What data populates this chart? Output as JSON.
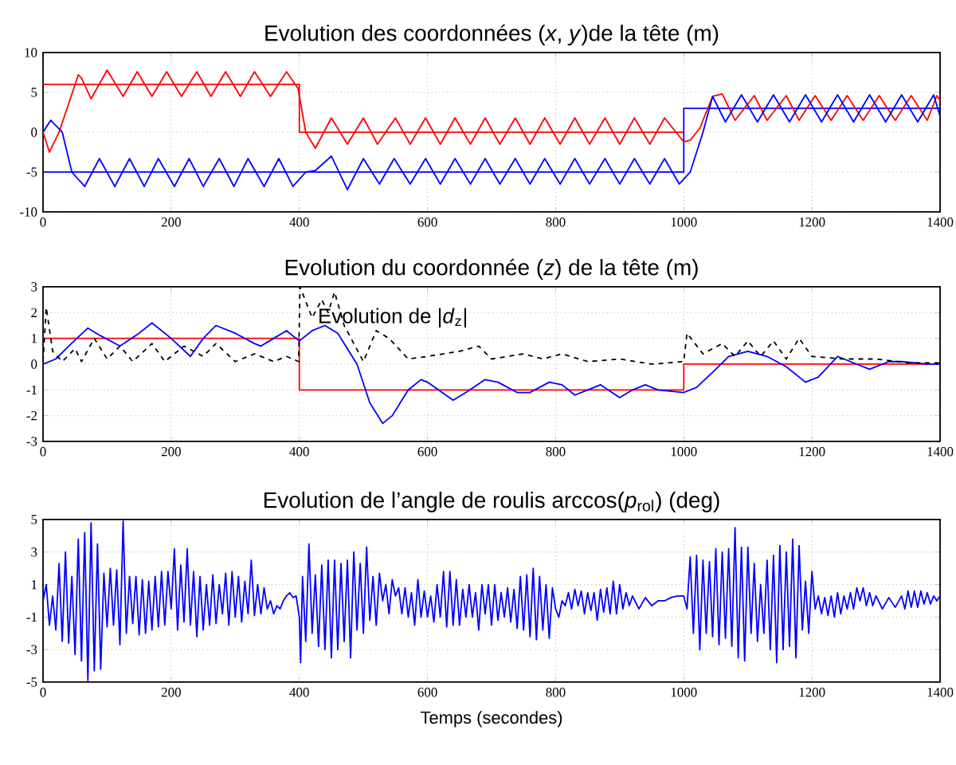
{
  "chart_data": [
    {
      "type": "line",
      "title": "Evolution des coordonnées (*x*, *y*)de la tête (m)",
      "xlim": [
        0,
        1400
      ],
      "ylim": [
        -10,
        10
      ],
      "xticks": [
        0,
        200,
        400,
        600,
        800,
        1000,
        1200,
        1400
      ],
      "yticks": [
        -10,
        -5,
        0,
        5,
        10
      ],
      "grid": true,
      "series": [
        {
          "color": "#ff0000",
          "x": [
            0,
            400,
            400,
            1000
          ],
          "values": [
            6,
            6,
            0,
            0
          ]
        },
        {
          "color": "#0000ff",
          "x": [
            0,
            1000,
            1000,
            1400
          ],
          "values": [
            -5,
            -5,
            3,
            3
          ]
        },
        {
          "color": "#ff0000",
          "x": [
            0,
            10,
            25,
            55,
            60,
            75,
            100,
            125,
            147,
            170,
            193,
            216,
            240,
            262,
            285,
            308,
            330,
            355,
            380,
            398,
            410,
            425,
            450,
            475,
            500,
            522,
            550,
            573,
            597,
            620,
            643,
            667,
            690,
            713,
            737,
            760,
            783,
            807,
            830,
            853,
            877,
            900,
            923,
            947,
            970,
            1000,
            1010,
            1025,
            1045,
            1060,
            1080,
            1110,
            1130,
            1160,
            1180,
            1205,
            1230,
            1255,
            1280,
            1305,
            1330,
            1355,
            1380,
            1395,
            1400
          ],
          "values": [
            0,
            -2.5,
            0,
            7.2,
            6.8,
            4.2,
            7.8,
            4.5,
            7.6,
            4.5,
            7.6,
            4.5,
            7.6,
            4.5,
            7.6,
            4.5,
            7.6,
            4.5,
            7.6,
            5.5,
            0,
            -2,
            1.8,
            -1.5,
            1.8,
            -1.5,
            1.8,
            -1.5,
            1.8,
            -1.5,
            1.8,
            -1.5,
            1.8,
            -1.5,
            1.8,
            -1.5,
            1.8,
            -1.5,
            1.8,
            -1.5,
            1.8,
            -1.5,
            1.8,
            -1.5,
            1.8,
            -1.2,
            -1,
            0.5,
            4.5,
            4.8,
            1.5,
            4.6,
            1.5,
            4.6,
            1.5,
            4.6,
            1.5,
            4.6,
            1.5,
            4.6,
            1.5,
            4.6,
            1.5,
            4.6,
            4
          ]
        },
        {
          "color": "#0000ff",
          "x": [
            0,
            12,
            30,
            45,
            65,
            88,
            112,
            135,
            158,
            180,
            205,
            228,
            250,
            275,
            298,
            320,
            345,
            368,
            390,
            410,
            425,
            450,
            475,
            500,
            525,
            548,
            573,
            597,
            620,
            643,
            667,
            690,
            713,
            737,
            760,
            783,
            807,
            830,
            853,
            877,
            900,
            923,
            947,
            970,
            993,
            1010,
            1030,
            1045,
            1065,
            1090,
            1115,
            1140,
            1165,
            1190,
            1215,
            1240,
            1265,
            1290,
            1315,
            1340,
            1365,
            1390,
            1400
          ],
          "values": [
            0,
            1.5,
            0,
            -5,
            -6.8,
            -3.3,
            -6.8,
            -3.3,
            -6.8,
            -3.3,
            -6.8,
            -3.3,
            -6.8,
            -3.3,
            -6.8,
            -3.3,
            -6.8,
            -3.3,
            -6.8,
            -5,
            -4.8,
            -3,
            -7.2,
            -3.3,
            -6.5,
            -3.3,
            -6.5,
            -3.3,
            -6.5,
            -3.3,
            -6.5,
            -3.3,
            -6.5,
            -3.3,
            -6.5,
            -3.3,
            -6.5,
            -3.3,
            -6.5,
            -3.3,
            -6.5,
            -3.3,
            -6.5,
            -3.3,
            -6.5,
            -5,
            0,
            4.5,
            1.3,
            4.7,
            1.3,
            4.7,
            1.3,
            4.7,
            1.3,
            4.7,
            1.3,
            4.7,
            1.3,
            4.7,
            1.3,
            4.7,
            2
          ]
        }
      ]
    },
    {
      "type": "line",
      "title": "Evolution du coordonnée (*z*) de la tête (m)",
      "annotations": [
        "Evolution de |*d*$_{z}$|"
      ],
      "xlim": [
        0,
        1400
      ],
      "ylim": [
        -3,
        3
      ],
      "xticks": [
        0,
        200,
        400,
        600,
        800,
        1000,
        1200,
        1400
      ],
      "yticks": [
        -3,
        -2,
        -1,
        0,
        1,
        2,
        3
      ],
      "grid": true,
      "series": [
        {
          "color": "#ff0000",
          "x": [
            0,
            400,
            400,
            1000,
            1000,
            1400
          ],
          "values": [
            1,
            1,
            -1,
            -1,
            0,
            0
          ]
        },
        {
          "color": "#0000ff",
          "x": [
            0,
            20,
            40,
            70,
            90,
            120,
            150,
            170,
            200,
            230,
            250,
            270,
            300,
            330,
            340,
            360,
            380,
            400,
            420,
            440,
            460,
            490,
            510,
            530,
            545,
            570,
            590,
            600,
            640,
            660,
            690,
            710,
            740,
            760,
            790,
            810,
            830,
            850,
            870,
            900,
            920,
            940,
            960,
            1000,
            1020,
            1050,
            1070,
            1100,
            1130,
            1160,
            1190,
            1210,
            1240,
            1270,
            1290,
            1320,
            1340,
            1380,
            1400
          ],
          "values": [
            0,
            0.2,
            0.7,
            1.4,
            1.1,
            0.7,
            1.2,
            1.6,
            1.0,
            0.3,
            1.0,
            1.5,
            1.2,
            0.8,
            0.7,
            1.0,
            1.3,
            0.9,
            1.3,
            1.5,
            1.2,
            0,
            -1.5,
            -2.3,
            -2.0,
            -1.0,
            -0.6,
            -0.7,
            -1.4,
            -1.1,
            -0.6,
            -0.7,
            -1.1,
            -1.1,
            -0.7,
            -0.8,
            -1.2,
            -1.0,
            -0.8,
            -1.3,
            -1.0,
            -0.8,
            -1.0,
            -1.1,
            -0.9,
            -0.2,
            0.3,
            0.5,
            0.3,
            -0.1,
            -0.7,
            -0.5,
            0.3,
            0.0,
            -0.2,
            0.1,
            0.1,
            0.0,
            0
          ]
        },
        {
          "color": "#000000",
          "line_style": "dashed",
          "x": [
            0,
            5,
            15,
            30,
            50,
            60,
            80,
            100,
            120,
            140,
            170,
            190,
            220,
            250,
            270,
            300,
            330,
            360,
            380,
            399,
            401,
            420,
            435,
            445,
            455,
            470,
            500,
            520,
            540,
            570,
            600,
            650,
            680,
            700,
            750,
            780,
            810,
            850,
            900,
            950,
            1000,
            1005,
            1030,
            1060,
            1080,
            1100,
            1120,
            1140,
            1160,
            1180,
            1200,
            1250,
            1300,
            1350,
            1400
          ],
          "values": [
            0.1,
            2.2,
            0.5,
            0.1,
            0.6,
            0.1,
            1.0,
            0.2,
            0.7,
            0.1,
            0.8,
            0.1,
            0.7,
            0.3,
            0.8,
            0.1,
            0.4,
            0.1,
            0.3,
            0.1,
            3.0,
            1.8,
            2.5,
            2.0,
            2.8,
            1.5,
            0.1,
            1.3,
            1.0,
            0.2,
            0.3,
            0.5,
            0.7,
            0.2,
            0.4,
            0.2,
            0.4,
            0.1,
            0.2,
            0.0,
            0.1,
            1.2,
            0.4,
            0.8,
            0.3,
            0.9,
            0.3,
            0.9,
            0.2,
            1.0,
            0.3,
            0.2,
            0.2,
            0.05,
            0.05
          ]
        }
      ]
    },
    {
      "type": "line",
      "title": "Evolution de l’angle de roulis arccos(*p*$_{rol}$) (deg)",
      "xlabel": "Temps (secondes)",
      "xlim": [
        0,
        1400
      ],
      "ylim": [
        -5,
        5
      ],
      "xticks": [
        0,
        200,
        400,
        600,
        800,
        1000,
        1200,
        1400
      ],
      "yticks": [
        -5,
        -3,
        -1,
        1,
        3,
        5
      ],
      "grid": true,
      "series": [
        {
          "color": "#0000ff",
          "x": [
            0,
            5,
            10,
            15,
            20,
            25,
            30,
            35,
            40,
            45,
            50,
            55,
            60,
            65,
            70,
            75,
            80,
            85,
            90,
            95,
            100,
            105,
            110,
            115,
            120,
            125,
            130,
            135,
            140,
            145,
            150,
            155,
            160,
            165,
            170,
            175,
            180,
            185,
            190,
            195,
            200,
            205,
            210,
            215,
            220,
            225,
            230,
            235,
            240,
            245,
            250,
            255,
            260,
            265,
            270,
            275,
            280,
            285,
            290,
            295,
            300,
            305,
            310,
            315,
            320,
            325,
            330,
            335,
            340,
            345,
            350,
            355,
            360,
            365,
            370,
            375,
            380,
            385,
            390,
            395,
            400,
            402,
            405,
            410,
            415,
            420,
            425,
            430,
            435,
            440,
            445,
            450,
            455,
            460,
            465,
            470,
            475,
            480,
            485,
            490,
            495,
            500,
            505,
            510,
            515,
            520,
            525,
            530,
            535,
            540,
            545,
            550,
            555,
            560,
            565,
            570,
            575,
            580,
            585,
            590,
            595,
            600,
            605,
            610,
            615,
            620,
            625,
            630,
            635,
            640,
            645,
            650,
            655,
            660,
            665,
            670,
            675,
            680,
            685,
            690,
            695,
            700,
            705,
            710,
            715,
            720,
            725,
            730,
            735,
            740,
            745,
            750,
            755,
            760,
            765,
            770,
            775,
            780,
            785,
            790,
            795,
            800,
            805,
            810,
            815,
            820,
            825,
            830,
            835,
            840,
            845,
            850,
            855,
            860,
            865,
            870,
            875,
            880,
            885,
            890,
            895,
            900,
            905,
            910,
            915,
            920,
            930,
            940,
            950,
            960,
            970,
            980,
            990,
            1000,
            1005,
            1010,
            1015,
            1020,
            1025,
            1030,
            1035,
            1040,
            1045,
            1050,
            1055,
            1060,
            1065,
            1070,
            1075,
            1080,
            1085,
            1090,
            1095,
            1100,
            1105,
            1110,
            1115,
            1120,
            1125,
            1130,
            1135,
            1140,
            1145,
            1150,
            1155,
            1160,
            1165,
            1170,
            1175,
            1180,
            1185,
            1190,
            1195,
            1200,
            1205,
            1210,
            1215,
            1220,
            1225,
            1230,
            1235,
            1240,
            1245,
            1250,
            1255,
            1260,
            1265,
            1270,
            1275,
            1280,
            1285,
            1290,
            1295,
            1300,
            1310,
            1320,
            1330,
            1340,
            1345,
            1350,
            1355,
            1360,
            1365,
            1370,
            1375,
            1380,
            1385,
            1390,
            1395,
            1400
          ],
          "values": [
            0,
            1,
            -1.5,
            0.3,
            -1.8,
            2.3,
            -2.5,
            3.0,
            -2.6,
            1.5,
            -3.3,
            3.8,
            -3.7,
            4.2,
            -4.9,
            4.8,
            -4.3,
            3.5,
            -4.2,
            1.7,
            -1.6,
            2.0,
            -1.5,
            1.9,
            -2.7,
            4.9,
            -2.0,
            1.5,
            -1.4,
            1.5,
            -2.1,
            1.3,
            -2.0,
            1.2,
            -1.8,
            1.5,
            -1.6,
            1.8,
            -1.5,
            1.8,
            -0.5,
            3.2,
            -1.8,
            2.2,
            -1.3,
            3.2,
            -1.5,
            1.8,
            -2.2,
            1.5,
            -1.8,
            1.0,
            -1.5,
            1.6,
            -1.4,
            1.0,
            -0.8,
            1.7,
            -1.5,
            1.8,
            -1.0,
            1.5,
            -1.3,
            1.2,
            -0.8,
            2.5,
            -0.9,
            1.0,
            -0.8,
            0.8,
            -0.5,
            0,
            -0.8,
            -0.3,
            -0.5,
            0,
            0.3,
            0.5,
            0.2,
            0.3,
            -1.0,
            -3.8,
            1.5,
            -2.5,
            3.5,
            -2.0,
            1.6,
            -2.8,
            2.2,
            -3.0,
            2.5,
            -3.5,
            2.5,
            -3.0,
            2.3,
            -2.5,
            2.5,
            -3.5,
            3.0,
            -1.8,
            2.3,
            -2.0,
            3.3,
            -1.2,
            1.5,
            -1.5,
            1.7,
            0,
            1.0,
            -0.8,
            1.3,
            0.3,
            0.8,
            -0.8,
            0.8,
            -1.0,
            0.5,
            -1.5,
            1.3,
            -1.0,
            0.6,
            -1.0,
            0.3,
            -1.3,
            1.0,
            -1.0,
            1.8,
            -1.6,
            1.8,
            -1.5,
            1.3,
            -1.5,
            0.7,
            -1.0,
            1.0,
            -1.0,
            0.5,
            -1.8,
            1.0,
            -0.8,
            1.0,
            -1.5,
            1.0,
            -1.2,
            0.5,
            -1.0,
            0.8,
            -1.3,
            0.7,
            -1.7,
            1.5,
            -1.8,
            1.6,
            -2.2,
            2.0,
            -2.4,
            1.5,
            -1.8,
            1.0,
            -2.3,
            0.8,
            -0.5,
            -1.0,
            0,
            -0.3,
            0.5,
            -0.5,
            0.7,
            -0.3,
            0.6,
            -0.8,
            0.5,
            -0.6,
            0.5,
            -1.2,
            0.7,
            -0.7,
            0.8,
            -0.8,
            1.2,
            -0.8,
            1.0,
            -0.5,
            0.5,
            -0.3,
            0.3,
            -0.5,
            0.2,
            -0.3,
            0,
            0,
            0.2,
            0.3,
            0.3,
            -0.5,
            2.7,
            -2.0,
            2.8,
            -3.0,
            2.5,
            -2.0,
            2.4,
            -2.2,
            3.2,
            -2.7,
            3.0,
            -2.3,
            3.2,
            -2.8,
            4.5,
            -3.5,
            3.3,
            -3.7,
            3.3,
            -2.0,
            2.3,
            -2.5,
            1.0,
            -2.0,
            2.5,
            -3.0,
            2.8,
            -3.8,
            3.4,
            -3.0,
            3.0,
            -2.8,
            3.8,
            -3.5,
            3.4,
            -1.8,
            1.2,
            -2.0,
            1.8,
            -0.5,
            0.3,
            -0.8,
            0.2,
            -0.9,
            0.3,
            -1.0,
            0.5,
            -0.8,
            0.3,
            -0.5,
            0.5,
            -0.5,
            0.8,
            0,
            0.8,
            -0.3,
            0.5,
            -0.3,
            0.3,
            -0.5,
            0.2,
            -0.4,
            0.3,
            -0.5,
            0.6,
            -0.4,
            0.6,
            -0.4,
            0.6,
            -0.2,
            0.5,
            -0.2,
            0.3,
            0,
            0.3
          ]
        }
      ]
    }
  ]
}
